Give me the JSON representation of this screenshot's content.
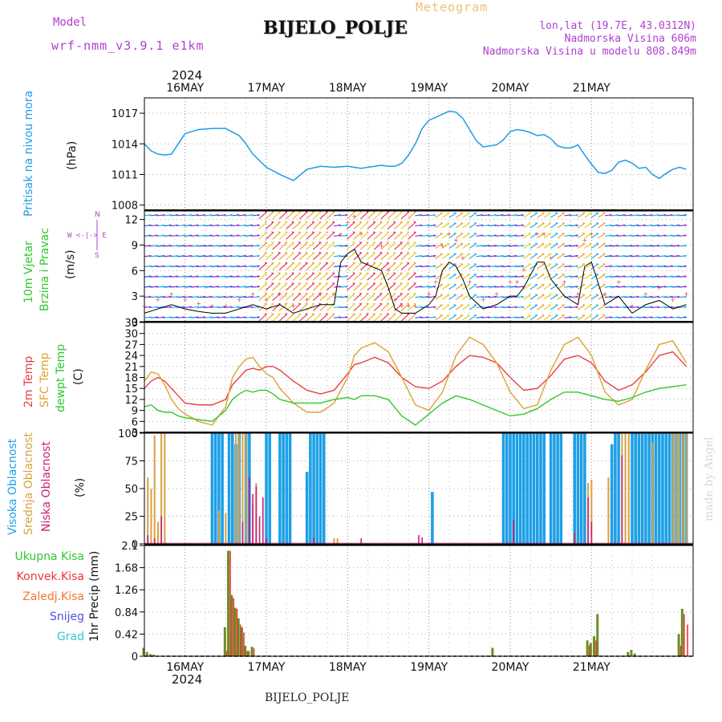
{
  "header": {
    "model_label": "Model",
    "model_name": "wrf-nmm_v3.9.1  e1km",
    "title": "BIJELO_POLJE",
    "meteogram_label": "Meteogram",
    "lonlat": "lon,lat (19.7E, 43.0312N)",
    "elevation": "Nadmorska Visina 606m",
    "model_elevation": "Nadmorska Visina u modelu 808.849m",
    "year_top": "2024",
    "year_bottom": "2024",
    "footer_station": "BIJELO_POLJE",
    "credit": "made by Angel"
  },
  "colors": {
    "pressure": "#1e9be6",
    "temp2m": "#e84040",
    "sfc": "#e0a030",
    "dewpt": "#2ec82e",
    "high_cloud": "#1ea0e6",
    "mid_cloud": "#d8a040",
    "low_cloud": "#c81e78",
    "total_precip": "#2ec82e",
    "conv_precip": "#e83838",
    "frozen_precip": "#f07830",
    "snow": "#5050e0",
    "hail": "#30c8c8",
    "wind_label": "#2ec82e",
    "compass": "#b040d0",
    "model_text": "#b040d0"
  },
  "days": [
    "16MAY",
    "17MAY",
    "18MAY",
    "19MAY",
    "20MAY",
    "21MAY"
  ],
  "panels": {
    "pressure": {
      "title": "Pritisak na nivou mora",
      "unit": "(hPa)",
      "ticks": [
        "1017",
        "1014",
        "1011",
        "1008"
      ]
    },
    "wind": {
      "title1": "10m Vjetar",
      "title2": "Brzina i Pravac",
      "unit": "(m/s)",
      "compass_n": "N",
      "compass_s": "S",
      "compass_we": "W <-|-> E",
      "ticks": [
        "12",
        "9",
        "6",
        "3",
        "0"
      ]
    },
    "temp": {
      "title1": "2m Temp",
      "title2": "SFC Temp",
      "title3": "dewpt Temp",
      "unit": "(C)",
      "ticks": [
        "33",
        "30",
        "27",
        "24",
        "21",
        "18",
        "15",
        "12",
        "9",
        "6",
        "3"
      ]
    },
    "cloud": {
      "title1": "Visoka Oblacnost",
      "title2": "Srednja Oblacnost",
      "title3": "Niska Oblacnost",
      "unit": "(%)",
      "ticks": [
        "100",
        "75",
        "50",
        "25",
        "0"
      ]
    },
    "precip": {
      "unit": "1hr Precip (mm)",
      "ticks": [
        "2.1",
        "1.68",
        "1.26",
        "0.84",
        "0.42",
        "0"
      ],
      "legend": [
        "Ukupna Kisa",
        "Konvek.Kisa",
        "Zaledj.Kisa",
        "Snijeg",
        "Grad"
      ]
    }
  },
  "chart_data": [
    {
      "type": "line",
      "name": "pressure",
      "x_unit": "hours from 2024-05-15 12 UTC",
      "ylim": [
        1007.5,
        1018.5
      ],
      "x": [
        0,
        2,
        4,
        6,
        8,
        12,
        16,
        20,
        24,
        28,
        30,
        32,
        36,
        40,
        44,
        48,
        52,
        56,
        60,
        64,
        66,
        70,
        72,
        74,
        76,
        78,
        80,
        82,
        84,
        86,
        88,
        90,
        92,
        94,
        96,
        98,
        100,
        102,
        104,
        106,
        108,
        110,
        112,
        114,
        116,
        118,
        120,
        122,
        124,
        126,
        128,
        130,
        132,
        134,
        136,
        138,
        140,
        142,
        144,
        146,
        148,
        150,
        152,
        154,
        156,
        158,
        160
      ],
      "values": [
        1014.0,
        1013.3,
        1013.0,
        1012.9,
        1013.0,
        1015.0,
        1015.4,
        1015.5,
        1015.5,
        1014.8,
        1014.0,
        1013.0,
        1011.7,
        1011.0,
        1010.4,
        1011.5,
        1011.8,
        1011.7,
        1011.8,
        1011.6,
        1011.7,
        1011.9,
        1011.8,
        1011.8,
        1012.1,
        1012.9,
        1014.0,
        1015.5,
        1016.3,
        1016.6,
        1016.9,
        1017.2,
        1017.1,
        1016.5,
        1015.4,
        1014.3,
        1013.7,
        1013.8,
        1013.9,
        1014.4,
        1015.2,
        1015.4,
        1015.3,
        1015.1,
        1014.8,
        1014.9,
        1014.5,
        1013.8,
        1013.6,
        1013.6,
        1013.9,
        1012.9,
        1012.0,
        1011.2,
        1011.1,
        1011.4,
        1012.2,
        1012.4,
        1012.1,
        1011.6,
        1011.7,
        1011.0,
        1010.6,
        1011.1,
        1011.5,
        1011.7,
        1011.5
      ]
    },
    {
      "type": "line",
      "name": "2m_temp",
      "x_unit": "hours from 2024-05-15 12 UTC",
      "ylim": [
        3,
        33
      ],
      "x": [
        0,
        2,
        4,
        6,
        8,
        10,
        12,
        16,
        20,
        24,
        26,
        28,
        30,
        32,
        34,
        36,
        38,
        40,
        44,
        48,
        52,
        56,
        60,
        62,
        64,
        68,
        72,
        76,
        80,
        84,
        88,
        92,
        96,
        100,
        104,
        108,
        112,
        116,
        120,
        124,
        128,
        132,
        136,
        140,
        144,
        148,
        152,
        156,
        160
      ],
      "values": [
        15,
        17,
        18,
        17,
        15,
        13,
        11,
        10.5,
        10.5,
        12,
        16,
        18,
        20,
        20.5,
        20,
        21,
        21,
        20,
        17,
        14.5,
        13.5,
        14.5,
        19,
        21.5,
        22,
        23.5,
        22,
        18,
        15.5,
        15,
        17,
        21,
        24,
        23.5,
        22,
        18,
        14.5,
        15,
        18.5,
        23,
        24,
        22,
        17,
        14.5,
        16,
        19.5,
        24,
        25,
        21
      ]
    },
    {
      "type": "line",
      "name": "sfc_temp",
      "x_unit": "hours from 2024-05-15 12 UTC",
      "ylim": [
        3,
        33
      ],
      "x": [
        0,
        2,
        4,
        6,
        8,
        10,
        12,
        16,
        20,
        24,
        26,
        28,
        30,
        32,
        34,
        36,
        38,
        40,
        44,
        48,
        52,
        56,
        60,
        62,
        64,
        68,
        72,
        76,
        80,
        84,
        88,
        92,
        96,
        100,
        104,
        108,
        112,
        116,
        120,
        124,
        128,
        132,
        136,
        140,
        144,
        148,
        152,
        156,
        160
      ],
      "values": [
        17,
        19.5,
        19,
        16,
        12,
        9.5,
        8,
        6,
        5,
        10,
        18,
        21,
        23,
        23.5,
        21,
        19,
        18,
        15,
        11,
        8.5,
        8.5,
        11,
        18,
        24,
        26,
        27.5,
        25,
        18,
        10.5,
        9,
        14,
        24,
        29,
        27,
        22,
        14,
        9.5,
        10.5,
        20,
        27,
        29,
        24,
        14,
        10.5,
        12,
        20,
        27,
        28,
        22
      ]
    },
    {
      "type": "line",
      "name": "dewpt_temp",
      "x_unit": "hours from 2024-05-15 12 UTC",
      "ylim": [
        3,
        33
      ],
      "x": [
        0,
        2,
        4,
        6,
        8,
        10,
        12,
        16,
        20,
        24,
        26,
        28,
        30,
        32,
        34,
        36,
        38,
        40,
        44,
        48,
        52,
        56,
        60,
        62,
        64,
        68,
        72,
        76,
        80,
        84,
        88,
        92,
        96,
        100,
        104,
        108,
        112,
        116,
        120,
        124,
        128,
        132,
        136,
        140,
        144,
        148,
        152,
        156,
        160
      ],
      "values": [
        10,
        10.5,
        9,
        8.5,
        8.5,
        7.5,
        7,
        6.5,
        6,
        9,
        12,
        13.5,
        14.5,
        14,
        14.5,
        14.5,
        13.5,
        12,
        11,
        11,
        11,
        12,
        12.5,
        12,
        13,
        13,
        12,
        7.5,
        5,
        8,
        11,
        13,
        12,
        10.5,
        9,
        7.5,
        8,
        9.5,
        12,
        14,
        14,
        13,
        12,
        11.5,
        12.5,
        14,
        15,
        15.5,
        16
      ]
    },
    {
      "type": "bar",
      "name": "cloud_cover",
      "x_unit": "hours from 2024-05-15 12 UTC",
      "ylim": [
        0,
        100
      ],
      "series": [
        {
          "name": "high",
          "x": [
            20,
            21,
            22,
            23,
            25,
            26,
            27,
            28,
            30,
            31,
            36,
            37,
            40,
            41,
            42,
            43,
            48,
            49,
            50,
            51,
            52,
            53,
            85,
            106,
            107,
            108,
            109,
            110,
            111,
            112,
            113,
            114,
            115,
            116,
            117,
            118,
            120,
            121,
            122,
            123,
            127,
            128,
            129,
            130,
            138,
            139,
            140,
            144,
            145,
            146,
            147,
            148,
            149,
            150,
            151,
            152,
            153,
            154,
            155,
            156,
            157,
            158,
            159,
            160
          ],
          "values": [
            100,
            100,
            100,
            100,
            100,
            100,
            90,
            100,
            100,
            100,
            100,
            100,
            100,
            100,
            100,
            100,
            65,
            100,
            100,
            100,
            100,
            100,
            47,
            100,
            100,
            100,
            100,
            100,
            100,
            100,
            100,
            100,
            100,
            100,
            100,
            100,
            100,
            100,
            100,
            100,
            100,
            100,
            100,
            100,
            90,
            100,
            100,
            100,
            100,
            100,
            100,
            100,
            100,
            100,
            100,
            100,
            100,
            100,
            100,
            100,
            100,
            100,
            100,
            100
          ]
        },
        {
          "name": "mid",
          "x": [
            1,
            2,
            3,
            4,
            5,
            6,
            22,
            24,
            27,
            28,
            29,
            30,
            32,
            33,
            56,
            57,
            127,
            131,
            132,
            137,
            141,
            142,
            143,
            150,
            156,
            157,
            158,
            159,
            160
          ],
          "values": [
            60,
            50,
            98,
            20,
            100,
            100,
            30,
            28,
            100,
            100,
            100,
            100,
            35,
            55,
            5,
            5,
            10,
            55,
            58,
            60,
            100,
            100,
            100,
            92,
            100,
            100,
            100,
            100,
            100
          ]
        },
        {
          "name": "low",
          "x": [
            1,
            3,
            5,
            29,
            31,
            32,
            33,
            34,
            35,
            36,
            50,
            64,
            81,
            82,
            109,
            127,
            131,
            132,
            141
          ],
          "values": [
            8,
            5,
            25,
            20,
            60,
            45,
            52,
            25,
            42,
            5,
            6,
            5,
            8,
            6,
            22,
            10,
            42,
            20,
            80
          ]
        }
      ]
    },
    {
      "type": "bar",
      "name": "precip_1hr",
      "x_unit": "hours from 2024-05-15 12 UTC",
      "ylim": [
        0,
        2.1
      ],
      "series": [
        {
          "name": "Ukupna Kisa",
          "x": [
            0,
            1,
            2,
            3,
            24,
            25,
            26,
            27,
            28,
            29,
            30,
            31,
            32,
            103,
            131,
            132,
            133,
            134,
            143,
            144,
            145,
            158,
            159
          ],
          "values": [
            0.16,
            0.08,
            0.04,
            0.03,
            0.55,
            2.0,
            1.16,
            0.92,
            0.72,
            0.55,
            0.2,
            0.1,
            0.18,
            0.16,
            0.3,
            0.25,
            0.38,
            0.8,
            0.08,
            0.12,
            0.05,
            0.42,
            0.9
          ]
        },
        {
          "name": "Konvek.Kisa",
          "x": [
            24,
            25,
            26,
            27,
            28,
            29,
            30,
            32,
            131,
            133,
            158,
            159,
            160
          ],
          "values": [
            0.1,
            2.0,
            1.1,
            0.9,
            0.6,
            0.45,
            0.1,
            0.15,
            0.2,
            0.3,
            0.2,
            0.8,
            0.6
          ]
        }
      ]
    }
  ]
}
